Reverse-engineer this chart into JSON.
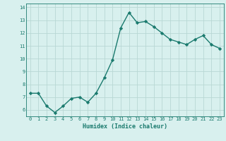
{
  "x": [
    0,
    1,
    2,
    3,
    4,
    5,
    6,
    7,
    8,
    9,
    10,
    11,
    12,
    13,
    14,
    15,
    16,
    17,
    18,
    19,
    20,
    21,
    22,
    23
  ],
  "y": [
    7.3,
    7.3,
    6.3,
    5.8,
    6.3,
    6.9,
    7.0,
    6.6,
    7.3,
    8.5,
    9.9,
    12.4,
    13.6,
    12.8,
    12.9,
    12.5,
    12.0,
    11.5,
    11.3,
    11.1,
    11.5,
    11.8,
    11.1,
    10.8
  ],
  "line_color": "#1a7a6e",
  "marker": "D",
  "marker_size": 2.2,
  "bg_color": "#d8f0ee",
  "grid_color": "#b8d8d4",
  "xlabel": "Humidex (Indice chaleur)",
  "ylim": [
    5.5,
    14.3
  ],
  "yticks": [
    6,
    7,
    8,
    9,
    10,
    11,
    12,
    13,
    14
  ],
  "xticks": [
    0,
    1,
    2,
    3,
    4,
    5,
    6,
    7,
    8,
    9,
    10,
    11,
    12,
    13,
    14,
    15,
    16,
    17,
    18,
    19,
    20,
    21,
    22,
    23
  ],
  "xlim": [
    -0.5,
    23.5
  ],
  "xlabel_color": "#1a7a6e",
  "tick_color": "#1a7a6e",
  "grid_linewidth": 0.6,
  "line_width": 1.0,
  "tick_fontsize": 5.0,
  "xlabel_fontsize": 6.0
}
